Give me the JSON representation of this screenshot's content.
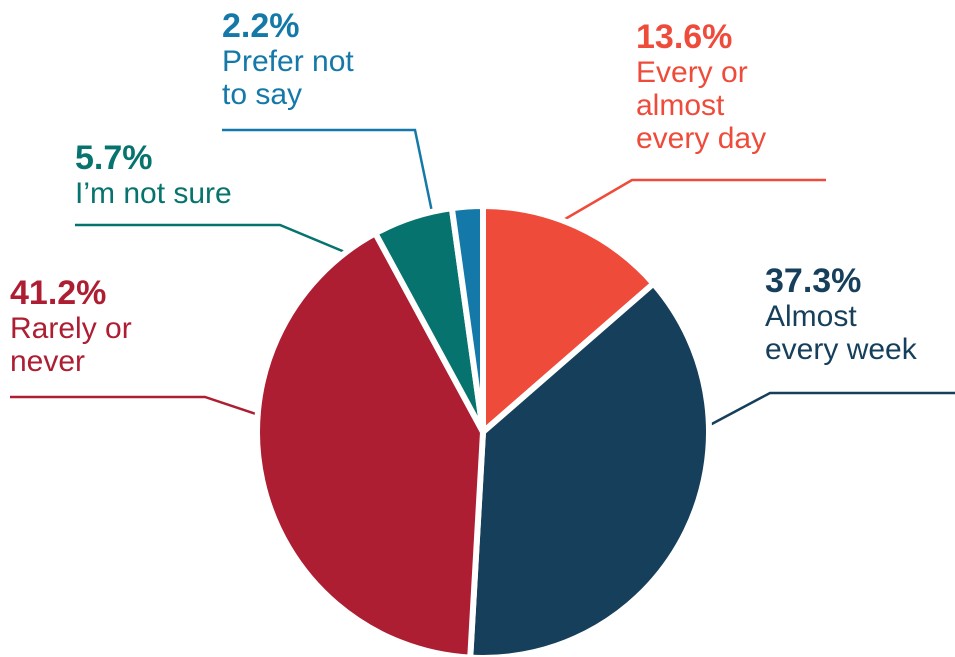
{
  "chart_data": {
    "type": "pie",
    "categories": [
      "Every or almost every day",
      "Almost every week",
      "Rarely or never",
      "I’m not sure",
      "Prefer not to say"
    ],
    "values": [
      13.6,
      37.3,
      41.2,
      5.7,
      2.2
    ],
    "value_labels": [
      "13.6%",
      "37.3%",
      "41.2%",
      "5.7%",
      "2.2%"
    ],
    "colors": [
      "#ef4b3b",
      "#163f5b",
      "#ad1e33",
      "#07736f",
      "#1479a9"
    ]
  }
}
